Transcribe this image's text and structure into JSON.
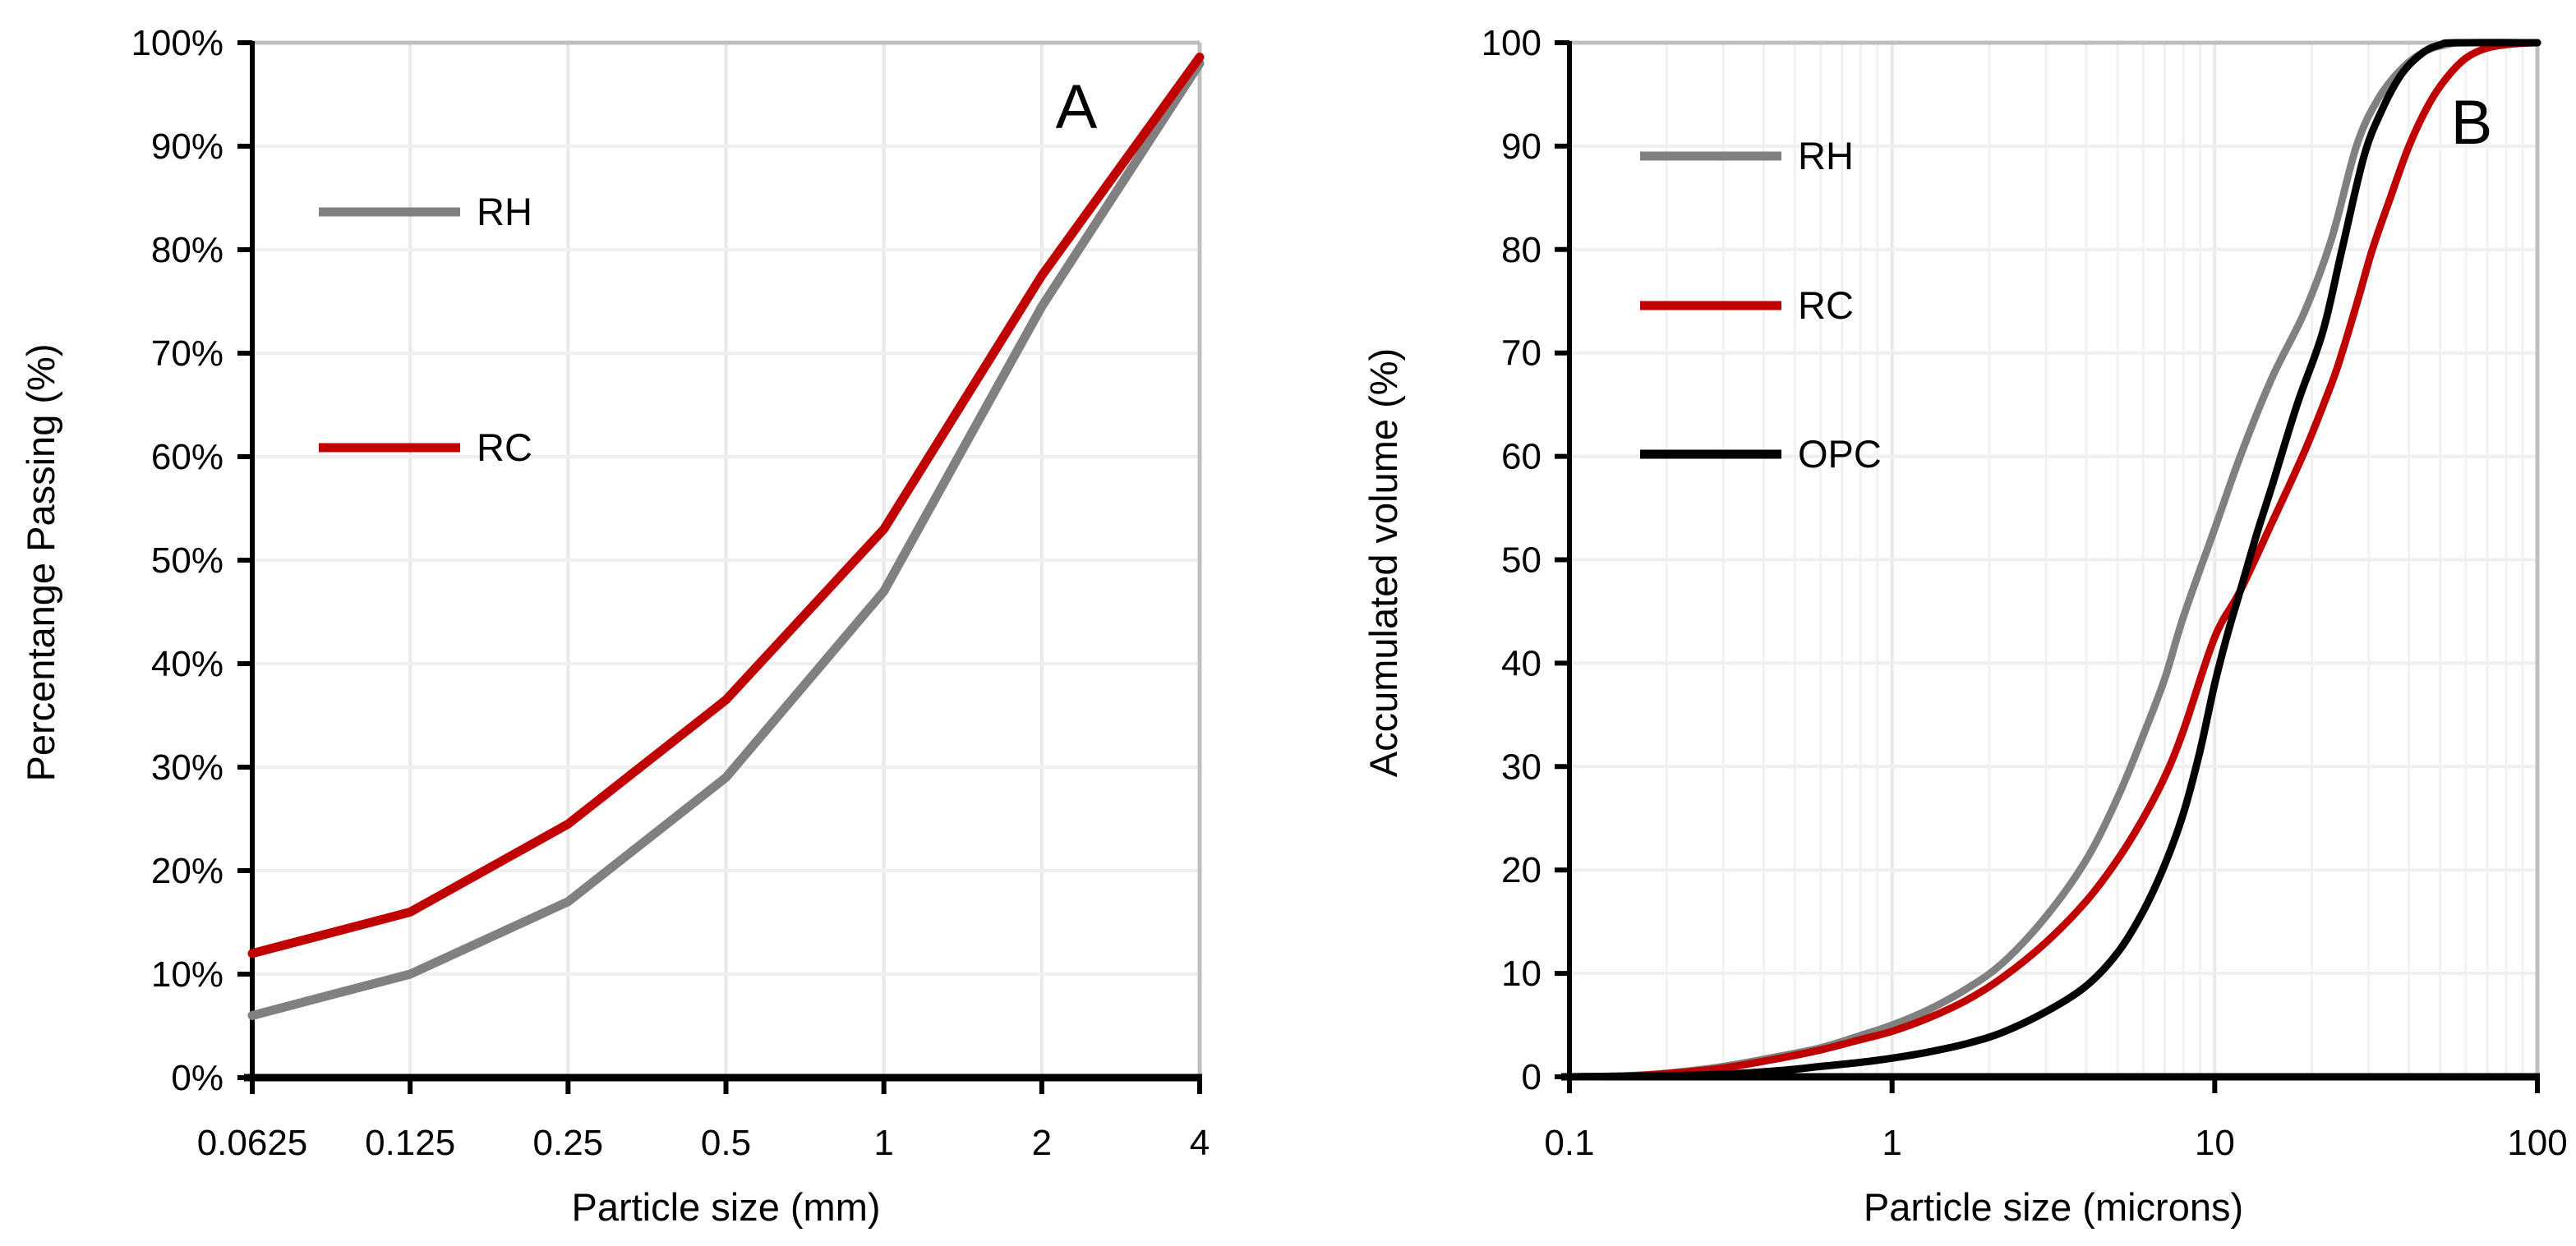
{
  "figure": {
    "background": "#ffffff",
    "panel_letters": [
      "A",
      "B"
    ],
    "colors": {
      "rh_gray": "#808080",
      "rc_red": "#C00000",
      "opc_black": "#000000",
      "grid_light": "#EFEFEF",
      "grid_vertical": "#E9E9E9",
      "grid_minor": "#F2F2F2",
      "plot_border_gray": "#BFBFBF",
      "axis_black": "#000000"
    }
  },
  "chart_data": [
    {
      "type": "line",
      "panel_label": "A",
      "title": "",
      "xlabel": "Particle size (mm)",
      "ylabel": "Percentange Passing (%)",
      "x_scale": "log2",
      "xlim": [
        0.0625,
        4
      ],
      "ylim": [
        0,
        100
      ],
      "grid": true,
      "smooth": false,
      "legend_position": "upper-left-inside",
      "x_ticks": [
        0.0625,
        0.125,
        0.25,
        0.5,
        1,
        2,
        4
      ],
      "x_tick_labels": [
        "0.0625",
        "0.125",
        "0.25",
        "0.5",
        "1",
        "2",
        "4"
      ],
      "y_ticks": [
        0,
        10,
        20,
        30,
        40,
        50,
        60,
        70,
        80,
        90,
        100
      ],
      "y_tick_labels": [
        "0%",
        "10%",
        "20%",
        "30%",
        "40%",
        "50%",
        "60%",
        "70%",
        "80%",
        "90%",
        "100%"
      ],
      "series": [
        {
          "name": "RH",
          "color": "#808080",
          "x": [
            0.0625,
            0.125,
            0.25,
            0.5,
            1,
            2,
            4
          ],
          "y": [
            6,
            10,
            17,
            29,
            47,
            74.5,
            98
          ]
        },
        {
          "name": "RC",
          "color": "#C00000",
          "x": [
            0.0625,
            0.125,
            0.25,
            0.5,
            1,
            2,
            4
          ],
          "y": [
            12,
            16,
            24.5,
            36.5,
            53,
            77.5,
            98.6
          ]
        }
      ]
    },
    {
      "type": "line",
      "panel_label": "B",
      "title": "",
      "xlabel": "Particle size (microns)",
      "ylabel": "Accumulated volume (%)",
      "x_scale": "log10",
      "xlim": [
        0.1,
        100
      ],
      "ylim": [
        0,
        100
      ],
      "grid": true,
      "minor_grid": true,
      "smooth": true,
      "legend_position": "upper-left-inside",
      "x_ticks": [
        0.1,
        1,
        10,
        100
      ],
      "x_tick_labels": [
        "0.1",
        "1",
        "10",
        "100"
      ],
      "y_ticks": [
        0,
        10,
        20,
        30,
        40,
        50,
        60,
        70,
        80,
        90,
        100
      ],
      "y_tick_labels": [
        "0",
        "10",
        "20",
        "30",
        "40",
        "50",
        "60",
        "70",
        "80",
        "90",
        "100"
      ],
      "series": [
        {
          "name": "RH",
          "color": "#808080",
          "x": [
            0.1,
            0.15,
            0.2,
            0.3,
            0.45,
            0.6,
            0.8,
            1,
            1.3,
            1.7,
            2.2,
            3,
            4,
            5,
            6,
            7,
            8,
            10,
            12,
            15,
            19,
            23,
            27.5,
            32,
            38,
            45,
            52,
            60,
            100
          ],
          "y": [
            0,
            0.1,
            0.35,
            1,
            2,
            2.8,
            4,
            5,
            6.5,
            8.5,
            11,
            15.5,
            21,
            27,
            33,
            38.5,
            44.5,
            53,
            60,
            67.5,
            74,
            81,
            90,
            94.5,
            97.5,
            99.2,
            99.8,
            100,
            100
          ]
        },
        {
          "name": "RC",
          "color": "#C00000",
          "x": [
            0.1,
            0.15,
            0.2,
            0.3,
            0.45,
            0.6,
            0.8,
            1,
            1.3,
            1.7,
            2.2,
            3,
            4,
            5,
            6,
            7,
            8,
            10,
            12,
            15,
            19,
            23,
            24.8,
            28,
            30.8,
            35,
            40,
            46,
            52,
            60,
            70,
            85,
            100
          ],
          "y": [
            0,
            0.08,
            0.3,
            0.85,
            1.8,
            2.6,
            3.6,
            4.4,
            5.7,
            7.4,
            9.6,
            13,
            17,
            21,
            25,
            29,
            33.5,
            42.5,
            47,
            53.5,
            60.5,
            67,
            70,
            75.5,
            80,
            85,
            90,
            94,
            96.5,
            98.5,
            99.5,
            99.9,
            100
          ]
        },
        {
          "name": "OPC",
          "color": "#000000",
          "x": [
            0.1,
            0.2,
            0.3,
            0.45,
            0.6,
            0.8,
            1,
            1.3,
            1.7,
            2.2,
            3,
            4,
            5,
            6,
            7,
            8,
            9,
            10,
            11,
            12,
            13.5,
            15,
            18,
            21.6,
            24.8,
            29,
            33,
            38,
            44,
            50,
            56,
            100
          ],
          "y": [
            0,
            0.1,
            0.25,
            0.6,
            1,
            1.4,
            1.8,
            2.4,
            3.2,
            4.3,
            6.3,
            8.8,
            12,
            16,
            20.5,
            25.5,
            31.5,
            38,
            43,
            47,
            52.5,
            57,
            65,
            72,
            80,
            89,
            93.5,
            97,
            99,
            99.8,
            100,
            100
          ]
        }
      ]
    }
  ]
}
